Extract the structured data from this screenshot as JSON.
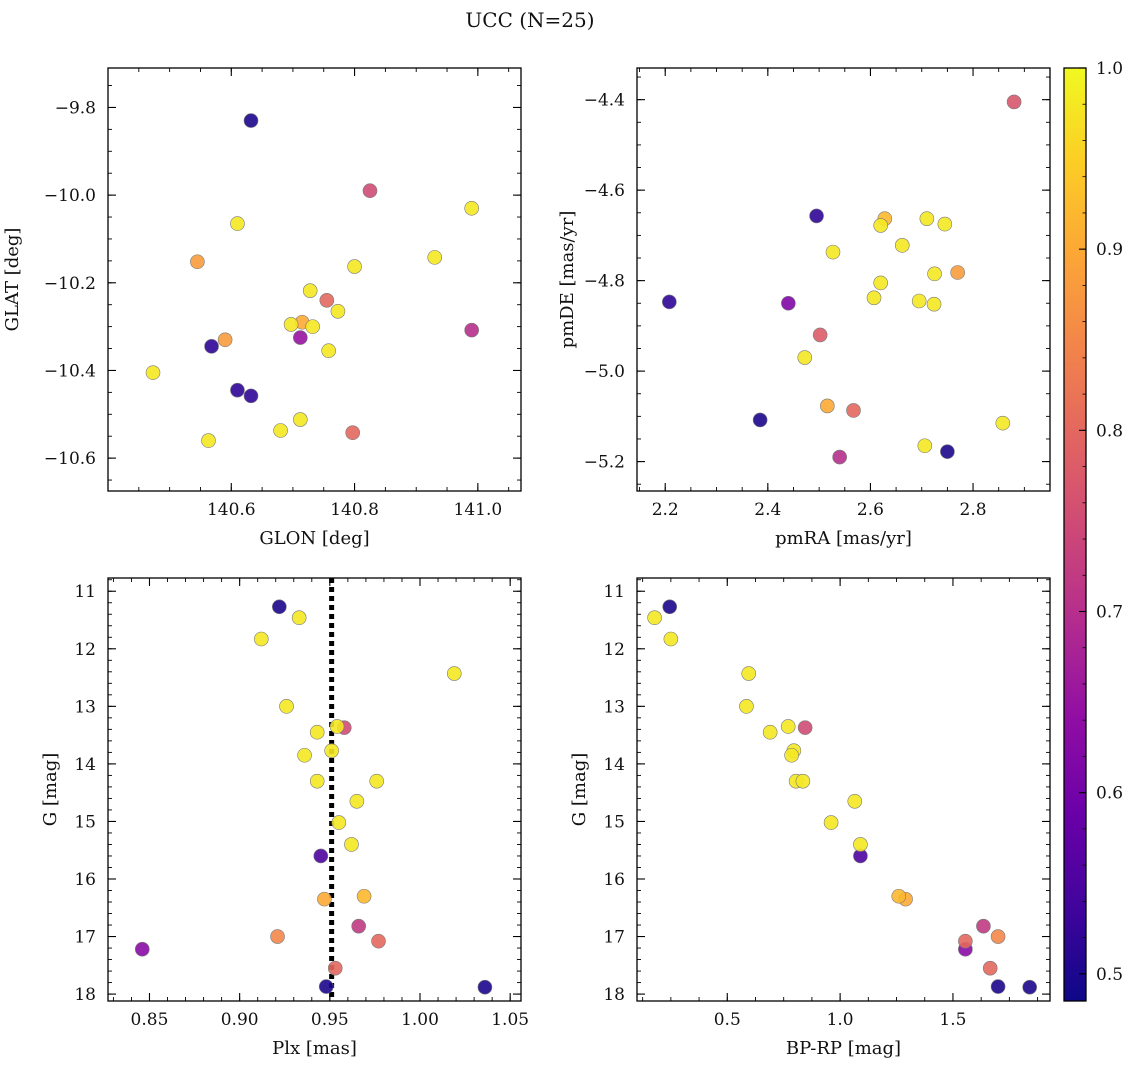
{
  "figure": {
    "title": "UCC (N=25)"
  },
  "colorbar": {
    "colormap": "plasma",
    "range": [
      0.485,
      1.0
    ],
    "ticks": [
      0.5,
      0.6,
      0.7,
      0.8,
      0.9,
      1.0
    ],
    "tick_labels": [
      "0.5",
      "0.6",
      "0.7",
      "0.8",
      "0.9",
      "1.0"
    ]
  },
  "chart_data": [
    {
      "type": "scatter",
      "xlabel": "GLON [deg]",
      "ylabel": "GLAT [deg]",
      "xlim": [
        140.4,
        141.07
      ],
      "ylim": [
        -10.675,
        -9.71
      ],
      "xticks": [
        140.6,
        140.8,
        141.0
      ],
      "xtick_labels": [
        "140.6",
        "140.8",
        "141.0"
      ],
      "yticks": [
        -9.8,
        -10.0,
        -10.2,
        -10.4,
        -10.6
      ],
      "ytick_labels": [
        "−9.8",
        "−10.0",
        "−10.2",
        "−10.4",
        "−10.6"
      ],
      "points": [
        {
          "x": 140.632,
          "y": -9.83,
          "c": 0.5
        },
        {
          "x": 140.825,
          "y": -9.99,
          "c": 0.75
        },
        {
          "x": 140.61,
          "y": -10.065,
          "c": 0.98
        },
        {
          "x": 140.99,
          "y": -10.03,
          "c": 0.98
        },
        {
          "x": 140.545,
          "y": -10.152,
          "c": 0.88
        },
        {
          "x": 140.93,
          "y": -10.142,
          "c": 0.98
        },
        {
          "x": 140.8,
          "y": -10.163,
          "c": 0.98
        },
        {
          "x": 140.728,
          "y": -10.218,
          "c": 0.98
        },
        {
          "x": 140.755,
          "y": -10.24,
          "c": 0.8
        },
        {
          "x": 140.773,
          "y": -10.265,
          "c": 0.98
        },
        {
          "x": 140.697,
          "y": -10.295,
          "c": 0.98
        },
        {
          "x": 140.715,
          "y": -10.29,
          "c": 0.9
        },
        {
          "x": 140.732,
          "y": -10.3,
          "c": 0.98
        },
        {
          "x": 140.59,
          "y": -10.33,
          "c": 0.88
        },
        {
          "x": 140.568,
          "y": -10.345,
          "c": 0.52
        },
        {
          "x": 140.712,
          "y": -10.325,
          "c": 0.65
        },
        {
          "x": 140.99,
          "y": -10.308,
          "c": 0.7
        },
        {
          "x": 140.758,
          "y": -10.355,
          "c": 0.98
        },
        {
          "x": 140.473,
          "y": -10.405,
          "c": 0.98
        },
        {
          "x": 140.61,
          "y": -10.445,
          "c": 0.52
        },
        {
          "x": 140.632,
          "y": -10.458,
          "c": 0.52
        },
        {
          "x": 140.712,
          "y": -10.512,
          "c": 0.98
        },
        {
          "x": 140.68,
          "y": -10.537,
          "c": 0.98
        },
        {
          "x": 140.797,
          "y": -10.542,
          "c": 0.8
        },
        {
          "x": 140.563,
          "y": -10.56,
          "c": 0.98
        }
      ]
    },
    {
      "type": "scatter",
      "xlabel": "pmRA [mas/yr]",
      "ylabel": "pmDE [mas/yr]",
      "xlim": [
        2.145,
        2.95
      ],
      "ylim": [
        -5.265,
        -4.33
      ],
      "xticks": [
        2.2,
        2.4,
        2.6,
        2.8
      ],
      "xtick_labels": [
        "2.2",
        "2.4",
        "2.6",
        "2.8"
      ],
      "yticks": [
        -4.4,
        -4.6,
        -4.8,
        -5.0,
        -5.2
      ],
      "ytick_labels": [
        "−4.4",
        "−4.6",
        "−4.8",
        "−5.0",
        "−5.2"
      ],
      "points": [
        {
          "x": 2.88,
          "y": -4.405,
          "c": 0.77
        },
        {
          "x": 2.495,
          "y": -4.657,
          "c": 0.52
        },
        {
          "x": 2.628,
          "y": -4.663,
          "c": 0.92
        },
        {
          "x": 2.71,
          "y": -4.663,
          "c": 0.98
        },
        {
          "x": 2.745,
          "y": -4.675,
          "c": 0.98
        },
        {
          "x": 2.62,
          "y": -4.678,
          "c": 0.98
        },
        {
          "x": 2.662,
          "y": -4.722,
          "c": 0.98
        },
        {
          "x": 2.527,
          "y": -4.737,
          "c": 0.98
        },
        {
          "x": 2.77,
          "y": -4.782,
          "c": 0.88
        },
        {
          "x": 2.725,
          "y": -4.785,
          "c": 0.98
        },
        {
          "x": 2.62,
          "y": -4.805,
          "c": 0.98
        },
        {
          "x": 2.607,
          "y": -4.838,
          "c": 0.98
        },
        {
          "x": 2.695,
          "y": -4.845,
          "c": 0.98
        },
        {
          "x": 2.724,
          "y": -4.852,
          "c": 0.98
        },
        {
          "x": 2.208,
          "y": -4.847,
          "c": 0.52
        },
        {
          "x": 2.44,
          "y": -4.85,
          "c": 0.62
        },
        {
          "x": 2.502,
          "y": -4.92,
          "c": 0.78
        },
        {
          "x": 2.472,
          "y": -4.97,
          "c": 0.98
        },
        {
          "x": 2.516,
          "y": -5.077,
          "c": 0.9
        },
        {
          "x": 2.567,
          "y": -5.087,
          "c": 0.8
        },
        {
          "x": 2.385,
          "y": -5.108,
          "c": 0.5
        },
        {
          "x": 2.858,
          "y": -5.115,
          "c": 0.98
        },
        {
          "x": 2.706,
          "y": -5.165,
          "c": 0.98
        },
        {
          "x": 2.75,
          "y": -5.178,
          "c": 0.5
        },
        {
          "x": 2.54,
          "y": -5.19,
          "c": 0.7
        }
      ]
    },
    {
      "type": "scatter",
      "xlabel": "Plx [mas]",
      "ylabel": "G [mag]",
      "xlim": [
        0.827,
        1.056
      ],
      "ylim": [
        18.12,
        10.77
      ],
      "xticks": [
        0.85,
        0.9,
        0.95,
        1.0,
        1.05
      ],
      "xtick_labels": [
        "0.85",
        "0.90",
        "0.95",
        "1.00",
        "1.05"
      ],
      "yticks": [
        11,
        12,
        13,
        14,
        15,
        16,
        17,
        18
      ],
      "ytick_labels": [
        "11",
        "12",
        "13",
        "14",
        "15",
        "16",
        "17",
        "18"
      ],
      "vline": 0.951,
      "points": [
        {
          "x": 0.922,
          "y": 11.27,
          "c": 0.5
        },
        {
          "x": 0.933,
          "y": 11.46,
          "c": 0.98
        },
        {
          "x": 0.912,
          "y": 11.83,
          "c": 0.98
        },
        {
          "x": 1.019,
          "y": 12.43,
          "c": 0.98
        },
        {
          "x": 0.926,
          "y": 13.0,
          "c": 0.98
        },
        {
          "x": 0.954,
          "y": 13.35,
          "c": 0.98
        },
        {
          "x": 0.958,
          "y": 13.37,
          "c": 0.75
        },
        {
          "x": 0.943,
          "y": 13.45,
          "c": 0.98
        },
        {
          "x": 0.951,
          "y": 13.77,
          "c": 0.98
        },
        {
          "x": 0.936,
          "y": 13.85,
          "c": 0.98
        },
        {
          "x": 0.943,
          "y": 14.3,
          "c": 0.98
        },
        {
          "x": 0.976,
          "y": 14.3,
          "c": 0.98
        },
        {
          "x": 0.965,
          "y": 14.65,
          "c": 0.98
        },
        {
          "x": 0.955,
          "y": 15.02,
          "c": 0.98
        },
        {
          "x": 0.962,
          "y": 15.4,
          "c": 0.98
        },
        {
          "x": 0.945,
          "y": 15.6,
          "c": 0.55
        },
        {
          "x": 0.969,
          "y": 16.3,
          "c": 0.92
        },
        {
          "x": 0.947,
          "y": 16.35,
          "c": 0.9
        },
        {
          "x": 0.966,
          "y": 16.82,
          "c": 0.72
        },
        {
          "x": 0.921,
          "y": 17.0,
          "c": 0.85
        },
        {
          "x": 0.977,
          "y": 17.08,
          "c": 0.8
        },
        {
          "x": 0.846,
          "y": 17.22,
          "c": 0.63
        },
        {
          "x": 0.953,
          "y": 17.55,
          "c": 0.8
        },
        {
          "x": 0.948,
          "y": 17.87,
          "c": 0.5
        },
        {
          "x": 1.036,
          "y": 17.88,
          "c": 0.5
        }
      ]
    },
    {
      "type": "scatter",
      "xlabel": "BP-RP [mag]",
      "ylabel": "G [mag]",
      "xlim": [
        0.1,
        1.93
      ],
      "ylim": [
        18.12,
        10.77
      ],
      "xticks": [
        0.5,
        1.0,
        1.5
      ],
      "xtick_labels": [
        "0.5",
        "1.0",
        "1.5"
      ],
      "yticks": [
        11,
        12,
        13,
        14,
        15,
        16,
        17,
        18
      ],
      "ytick_labels": [
        "11",
        "12",
        "13",
        "14",
        "15",
        "16",
        "17",
        "18"
      ],
      "points": [
        {
          "x": 0.245,
          "y": 11.27,
          "c": 0.5
        },
        {
          "x": 0.178,
          "y": 11.46,
          "c": 0.98
        },
        {
          "x": 0.25,
          "y": 11.83,
          "c": 0.98
        },
        {
          "x": 0.595,
          "y": 12.43,
          "c": 0.98
        },
        {
          "x": 0.585,
          "y": 13.0,
          "c": 0.98
        },
        {
          "x": 0.77,
          "y": 13.35,
          "c": 0.98
        },
        {
          "x": 0.845,
          "y": 13.37,
          "c": 0.75
        },
        {
          "x": 0.69,
          "y": 13.45,
          "c": 0.98
        },
        {
          "x": 0.795,
          "y": 13.77,
          "c": 0.98
        },
        {
          "x": 0.785,
          "y": 13.85,
          "c": 0.98
        },
        {
          "x": 0.805,
          "y": 14.3,
          "c": 0.98
        },
        {
          "x": 0.835,
          "y": 14.3,
          "c": 0.98
        },
        {
          "x": 1.065,
          "y": 14.65,
          "c": 0.98
        },
        {
          "x": 0.96,
          "y": 15.02,
          "c": 0.98
        },
        {
          "x": 1.09,
          "y": 15.4,
          "c": 0.98
        },
        {
          "x": 1.09,
          "y": 15.6,
          "c": 0.55
        },
        {
          "x": 1.26,
          "y": 16.3,
          "c": 0.92
        },
        {
          "x": 1.29,
          "y": 16.35,
          "c": 0.9
        },
        {
          "x": 1.635,
          "y": 16.82,
          "c": 0.72
        },
        {
          "x": 1.7,
          "y": 17.0,
          "c": 0.85
        },
        {
          "x": 1.555,
          "y": 17.08,
          "c": 0.8
        },
        {
          "x": 1.555,
          "y": 17.22,
          "c": 0.63
        },
        {
          "x": 1.665,
          "y": 17.55,
          "c": 0.8
        },
        {
          "x": 1.7,
          "y": 17.87,
          "c": 0.5
        },
        {
          "x": 1.84,
          "y": 17.88,
          "c": 0.5
        }
      ]
    }
  ]
}
